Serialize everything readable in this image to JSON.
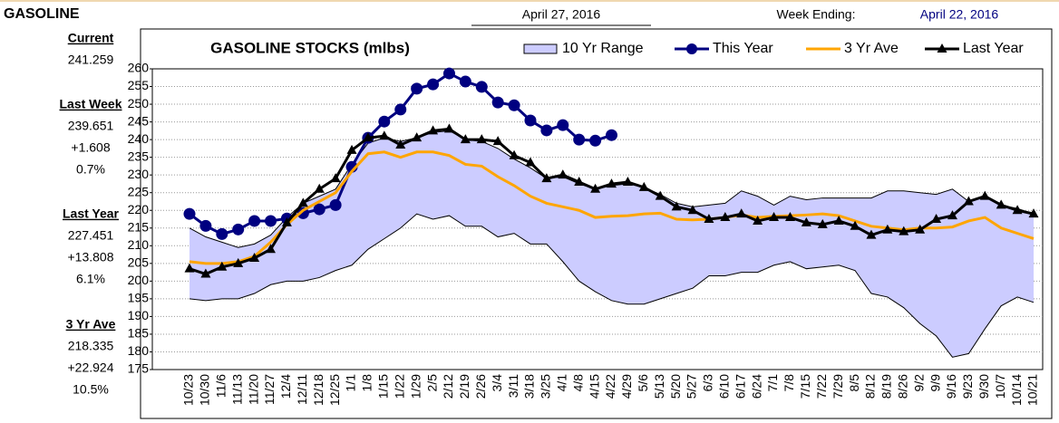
{
  "header": {
    "title": "GASOLINE",
    "date": "April 27, 2016",
    "week_label": "Week Ending:",
    "week": "April 22, 2016"
  },
  "summary": [
    {
      "label": "Current",
      "values": [
        "241.259"
      ]
    },
    {
      "label": "Last Week",
      "values": [
        "239.651",
        "+1.608",
        "0.7%"
      ]
    },
    {
      "label": "Last Year",
      "values": [
        "227.451",
        "+13.808",
        "6.1%"
      ]
    },
    {
      "label": "3 Yr Ave",
      "values": [
        "218.335",
        "+22.924",
        "10.5%"
      ]
    }
  ],
  "chart_data": {
    "type": "line",
    "title": "GASOLINE STOCKS (mlbs)",
    "categories": [
      "10/23",
      "10/30",
      "11/6",
      "11/13",
      "11/20",
      "11/27",
      "12/4",
      "12/11",
      "12/18",
      "12/25",
      "1/1",
      "1/8",
      "1/15",
      "1/22",
      "1/29",
      "2/5",
      "2/12",
      "2/19",
      "2/26",
      "3/4",
      "3/11",
      "3/18",
      "3/25",
      "4/1",
      "4/8",
      "4/15",
      "4/22",
      "4/29",
      "5/6",
      "5/13",
      "5/20",
      "5/27",
      "6/3",
      "6/10",
      "6/17",
      "6/24",
      "7/1",
      "7/8",
      "7/15",
      "7/22",
      "7/29",
      "8/5",
      "8/12",
      "8/19",
      "8/26",
      "9/2",
      "9/9",
      "9/16",
      "9/23",
      "9/30",
      "10/7",
      "10/14",
      "10/21"
    ],
    "ylim": [
      175,
      260
    ],
    "yticks": [
      175,
      180,
      185,
      190,
      195,
      200,
      205,
      210,
      215,
      220,
      225,
      230,
      235,
      240,
      245,
      250,
      255,
      260
    ],
    "grid": true,
    "legend": "top",
    "series": [
      {
        "name": "10 Yr Range",
        "type": "range",
        "color": "#ccccff",
        "high": [
          215,
          212.5,
          211,
          209.5,
          210.5,
          213,
          218,
          222,
          224,
          226,
          233,
          239,
          240.5,
          239.5,
          240.5,
          242,
          242.5,
          240,
          239.5,
          237.5,
          234.5,
          232,
          229,
          229.5,
          227.5,
          226,
          227,
          227.5,
          226.5,
          224.5,
          222,
          221,
          221.5,
          222,
          225.5,
          224,
          221.5,
          224,
          223,
          223.5,
          223.5,
          223.5,
          223.5,
          225.5,
          225.5,
          225,
          224.5,
          226,
          222.5,
          224,
          221.5,
          220.5,
          219
        ],
        "low": [
          195,
          194.5,
          195,
          195,
          196.5,
          199,
          200,
          200,
          201,
          203,
          204.5,
          209,
          212,
          215,
          219,
          217.5,
          218.5,
          215.5,
          215.5,
          212.5,
          213.5,
          210.5,
          210.5,
          205.5,
          200,
          197,
          194.5,
          193.5,
          193.5,
          195,
          196.5,
          198,
          201.5,
          201.5,
          202.5,
          202.5,
          204.5,
          205.5,
          203.5,
          204,
          204.5,
          203,
          196.5,
          195.5,
          192.5,
          188,
          184.5,
          178.5,
          179.5,
          186.5,
          193,
          195.5,
          194
        ]
      },
      {
        "name": "This Year",
        "color": "#000080",
        "marker": "circle",
        "values": [
          219,
          215.6,
          213.3,
          214.6,
          217,
          217,
          217.7,
          219.2,
          220.3,
          221.5,
          232.3,
          240.5,
          245.1,
          248.5,
          254.4,
          255.6,
          258.7,
          256.4,
          254.9,
          250.5,
          249.7,
          245.4,
          242.6,
          244.1,
          240,
          239.7,
          241.259,
          null,
          null,
          null,
          null,
          null,
          null,
          null,
          null,
          null,
          null,
          null,
          null,
          null,
          null,
          null,
          null,
          null,
          null,
          null,
          null,
          null,
          null,
          null,
          null,
          null,
          null
        ]
      },
      {
        "name": "3 Yr Ave",
        "color": "#ffa500",
        "marker": "none",
        "values": [
          205.5,
          205,
          205,
          205.5,
          207,
          211,
          216,
          220,
          222.5,
          225,
          231,
          236,
          236.5,
          235,
          236.5,
          236.5,
          235.5,
          233,
          232.5,
          229.5,
          227,
          224,
          222,
          221,
          220,
          218,
          218.335,
          218.5,
          219,
          219.2,
          217.5,
          217.3,
          217.5,
          218,
          218.7,
          218,
          218.3,
          218.5,
          218.7,
          219,
          218.5,
          217,
          215.5,
          215,
          214.5,
          215,
          215,
          215.3,
          217,
          218,
          215,
          213.5,
          212
        ]
      },
      {
        "name": "Last Year",
        "color": "#000000",
        "marker": "triangle",
        "values": [
          203.5,
          202,
          204,
          205,
          206.5,
          209,
          216.5,
          222,
          226,
          229,
          237,
          240.5,
          241,
          238.5,
          240.5,
          242.5,
          243,
          240,
          240,
          239.5,
          235.5,
          233.5,
          229,
          230,
          228,
          226,
          227.451,
          228,
          226.5,
          224,
          221,
          220,
          217.5,
          218,
          219,
          217,
          218,
          218,
          216.5,
          216,
          217,
          215.5,
          213,
          214.5,
          214,
          214.5,
          217.5,
          218.5,
          222.5,
          224,
          221.5,
          220,
          219
        ]
      }
    ]
  }
}
